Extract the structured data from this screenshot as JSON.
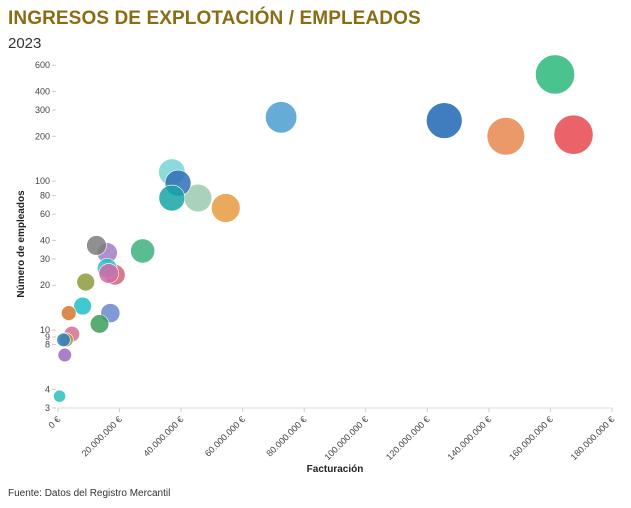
{
  "title": "INGRESOS DE EXPLOTACIÓN / EMPLEADOS",
  "subtitle": "2023",
  "source": "Fuente: Datos del Registro Mercantil",
  "chart_data": {
    "type": "scatter",
    "title": "INGRESOS DE EXPLOTACIÓN / EMPLEADOS",
    "subtitle": "2023",
    "xlabel": "Facturación",
    "ylabel": "Número de empleados",
    "xscale": "linear",
    "yscale": "log",
    "xlim": [
      0,
      180000000
    ],
    "ylim": [
      3,
      650
    ],
    "grid": false,
    "x_ticks": [
      0,
      20000000,
      40000000,
      60000000,
      80000000,
      100000000,
      120000000,
      140000000,
      160000000,
      180000000
    ],
    "x_tick_labels": [
      "0 €",
      "20.000.000 €",
      "40.000.000 €",
      "60.000.000 €",
      "80.000.000 €",
      "100.000.000 €",
      "120.000.000 €",
      "140.000.000 €",
      "160.000.000 €",
      "180.000.000 €"
    ],
    "y_ticks": [
      3,
      4,
      8,
      9,
      10,
      20,
      30,
      40,
      60,
      80,
      100,
      200,
      300,
      400,
      600
    ],
    "y_tick_labels": [
      "3",
      "4",
      "8",
      "9",
      "10",
      "20",
      "30",
      "40",
      "60",
      "80",
      "100",
      "200",
      "300",
      "400",
      "600"
    ],
    "points": [
      {
        "x": 161500000,
        "y": 520,
        "size": 125,
        "color": "#2bb87a"
      },
      {
        "x": 167500000,
        "y": 205,
        "size": 125,
        "color": "#e5484d"
      },
      {
        "x": 145500000,
        "y": 200,
        "size": 115,
        "color": "#e8874f"
      },
      {
        "x": 125500000,
        "y": 255,
        "size": 105,
        "color": "#1f66b3"
      },
      {
        "x": 72500000,
        "y": 268,
        "size": 80,
        "color": "#4a9fd0"
      },
      {
        "x": 54500000,
        "y": 66,
        "size": 68,
        "color": "#e89a40"
      },
      {
        "x": 45500000,
        "y": 77,
        "size": 62,
        "color": "#9bc9ae"
      },
      {
        "x": 37000000,
        "y": 115,
        "size": 58,
        "color": "#79d3d6"
      },
      {
        "x": 39000000,
        "y": 97,
        "size": 55,
        "color": "#2f6fb5"
      },
      {
        "x": 37000000,
        "y": 77,
        "size": 55,
        "color": "#18a3a6"
      },
      {
        "x": 27500000,
        "y": 34,
        "size": 48,
        "color": "#3fb07e"
      },
      {
        "x": 12500000,
        "y": 37,
        "size": 32,
        "color": "#7d7d7d"
      },
      {
        "x": 16000000,
        "y": 33,
        "size": 33,
        "color": "#a07cc6"
      },
      {
        "x": 16000000,
        "y": 26,
        "size": 32,
        "color": "#2bbfc4"
      },
      {
        "x": 16500000,
        "y": 24,
        "size": 32,
        "color": "#d36aa8"
      },
      {
        "x": 18500000,
        "y": 23.5,
        "size": 34,
        "color": "#d2617a"
      },
      {
        "x": 9000000,
        "y": 21,
        "size": 26,
        "color": "#8f9a3d"
      },
      {
        "x": 8000000,
        "y": 14.5,
        "size": 26,
        "color": "#1fbfc9"
      },
      {
        "x": 17000000,
        "y": 13,
        "size": 30,
        "color": "#6b87cc"
      },
      {
        "x": 13500000,
        "y": 11,
        "size": 28,
        "color": "#3d9e5a"
      },
      {
        "x": 3500000,
        "y": 13,
        "size": 18,
        "color": "#d3782e"
      },
      {
        "x": 4500000,
        "y": 9.4,
        "size": 20,
        "color": "#d66e8e"
      },
      {
        "x": 2700000,
        "y": 8.6,
        "size": 16,
        "color": "#b4983b"
      },
      {
        "x": 1800000,
        "y": 8.6,
        "size": 15,
        "color": "#2e7fc0"
      },
      {
        "x": 2200000,
        "y": 6.8,
        "size": 15,
        "color": "#9a6ac0"
      },
      {
        "x": 500000,
        "y": 3.6,
        "size": 12,
        "color": "#2bbfbf"
      }
    ]
  }
}
